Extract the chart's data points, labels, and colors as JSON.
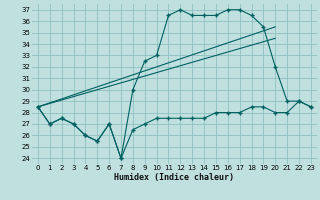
{
  "xlabel": "Humidex (Indice chaleur)",
  "bg_color": "#c0e0e0",
  "grid_color": "#90c0c0",
  "line_color": "#006060",
  "xlim": [
    -0.5,
    23.5
  ],
  "ylim": [
    23.5,
    37.5
  ],
  "xticks": [
    0,
    1,
    2,
    3,
    4,
    5,
    6,
    7,
    8,
    9,
    10,
    11,
    12,
    13,
    14,
    15,
    16,
    17,
    18,
    19,
    20,
    21,
    22,
    23
  ],
  "yticks": [
    24,
    25,
    26,
    27,
    28,
    29,
    30,
    31,
    32,
    33,
    34,
    35,
    36,
    37
  ],
  "curve_low_x": [
    0,
    1,
    2,
    3,
    4,
    5,
    6,
    7,
    8,
    9,
    10,
    11,
    12,
    13,
    14,
    15,
    16,
    17,
    18,
    19,
    20,
    21,
    22,
    23
  ],
  "curve_low_y": [
    28.5,
    27.0,
    27.5,
    27.0,
    26.0,
    25.5,
    27.0,
    24.0,
    26.5,
    27.0,
    27.5,
    27.5,
    27.5,
    27.5,
    27.5,
    28.0,
    28.0,
    28.0,
    28.5,
    28.5,
    28.0,
    28.0,
    29.0,
    28.5
  ],
  "curve_high_x": [
    0,
    1,
    2,
    3,
    4,
    5,
    6,
    7,
    8,
    9,
    10,
    11,
    12,
    13,
    14,
    15,
    16,
    17,
    18,
    19,
    20,
    21,
    22,
    23
  ],
  "curve_high_y": [
    28.5,
    27.0,
    27.5,
    27.0,
    26.0,
    25.5,
    27.0,
    24.0,
    30.0,
    32.5,
    33.0,
    36.5,
    37.0,
    36.5,
    36.5,
    36.5,
    37.0,
    37.0,
    36.5,
    35.5,
    32.0,
    29.0,
    29.0,
    28.5
  ],
  "trend1_x": [
    0,
    20
  ],
  "trend1_y": [
    28.5,
    35.5
  ],
  "trend2_x": [
    0,
    20
  ],
  "trend2_y": [
    28.5,
    34.5
  ]
}
